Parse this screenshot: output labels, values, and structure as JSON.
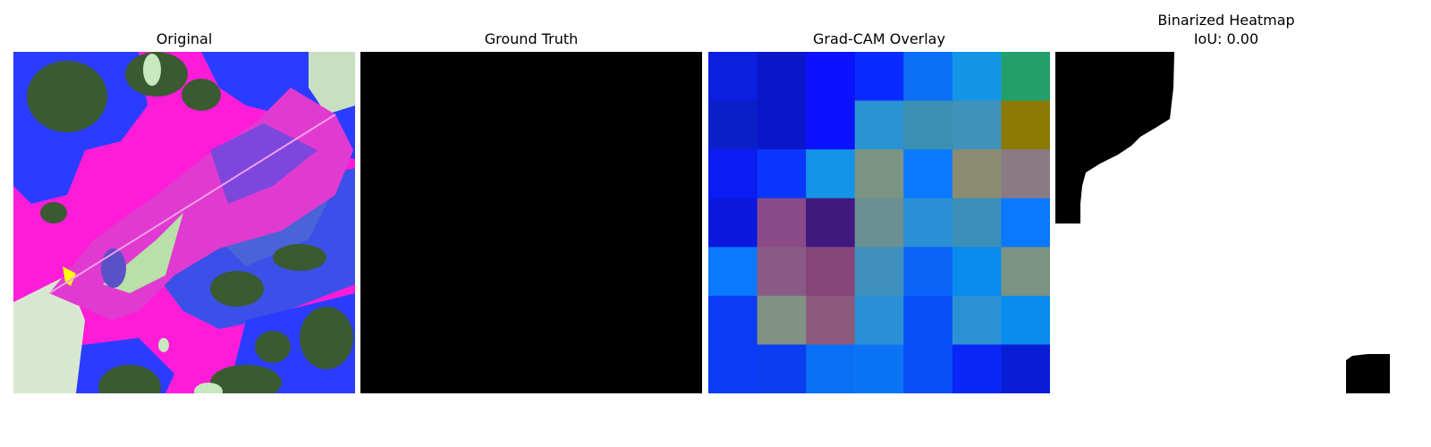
{
  "panels": [
    {
      "title": "Original"
    },
    {
      "title": "Ground Truth"
    },
    {
      "title": "Grad-CAM Overlay"
    },
    {
      "title": "Binarized Heatmap",
      "subtitle": "IoU: 0.00"
    }
  ],
  "gradcam_cells": [
    [
      "#0b1fe0",
      "#0a17c9",
      "#0a12ff",
      "#0a2bff",
      "#0a6ef6",
      "#1496e6",
      "#22a06b"
    ],
    [
      "#0a1fc8",
      "#0a17c9",
      "#0a12ff",
      "#2a93d2",
      "#3b8fb2",
      "#3f92b8",
      "#8b7a06"
    ],
    [
      "#0a1cf2",
      "#0a36ff",
      "#1394e6",
      "#7a9382",
      "#0a78ff",
      "#8a8c72",
      "#8a7a84"
    ],
    [
      "#0a18e0",
      "#8a4a88",
      "#40187e",
      "#6a9091",
      "#2990d6",
      "#3b8fb8",
      "#0a78ff"
    ],
    [
      "#0a78ff",
      "#8a5a86",
      "#864679",
      "#3f8fbc",
      "#0a63f6",
      "#0a8cee",
      "#7a9382"
    ],
    [
      "#0a3cf6",
      "#7f9283",
      "#8b5a7c",
      "#2a90d6",
      "#0a4ef6",
      "#2a92d4",
      "#0a8cee"
    ],
    [
      "#0a3cf6",
      "#0a3ef0",
      "#0a6ef6",
      "#0a74f4",
      "#0a4ef6",
      "#0a26f6",
      "#0a1dd6"
    ]
  ]
}
